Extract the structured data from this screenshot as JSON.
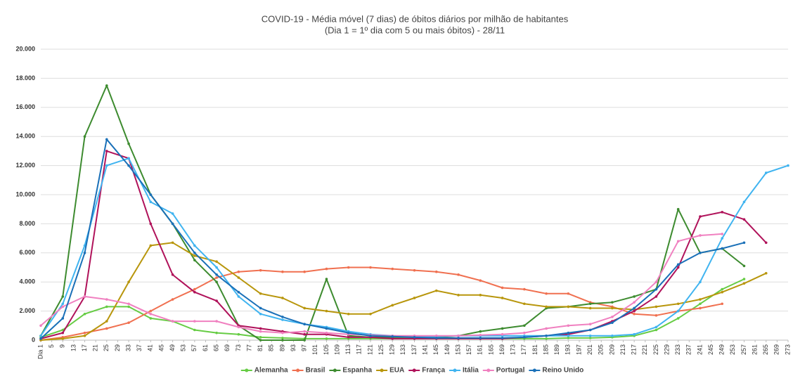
{
  "chart_data": {
    "type": "line",
    "title": "COVID-19 - Média móvel (7 dias) de óbitos diários por milhão de habitantes",
    "subtitle": "(Dia 1 = 1º dia com 5 ou mais óbitos) - 28/11",
    "x": [
      1,
      9,
      17,
      25,
      33,
      41,
      49,
      57,
      65,
      73,
      81,
      89,
      97,
      105,
      113,
      121,
      129,
      137,
      145,
      153,
      161,
      169,
      177,
      185,
      193,
      201,
      209,
      217,
      225,
      233,
      241,
      249,
      257,
      265,
      273
    ],
    "xlim": [
      1,
      273
    ],
    "xticks": [
      {
        "value": 1,
        "label": "Dia 1"
      },
      5,
      9,
      13,
      17,
      21,
      25,
      29,
      33,
      37,
      41,
      45,
      49,
      53,
      57,
      61,
      65,
      69,
      73,
      77,
      81,
      85,
      89,
      93,
      97,
      101,
      105,
      109,
      113,
      117,
      121,
      125,
      129,
      133,
      137,
      141,
      145,
      149,
      153,
      157,
      161,
      165,
      169,
      173,
      177,
      181,
      185,
      189,
      193,
      197,
      201,
      205,
      209,
      213,
      217,
      221,
      225,
      229,
      233,
      237,
      241,
      245,
      249,
      253,
      257,
      261,
      265,
      269,
      273
    ],
    "ylim": [
      0,
      20000
    ],
    "yticks": [
      0,
      {
        "value": 2000,
        "label": "2.000"
      },
      {
        "value": 4000,
        "label": "4.000"
      },
      {
        "value": 6000,
        "label": "6.000"
      },
      {
        "value": 8000,
        "label": "8.000"
      },
      {
        "value": 10000,
        "label": "10.000"
      },
      {
        "value": 12000,
        "label": "12.000"
      },
      {
        "value": 14000,
        "label": "14.000"
      },
      {
        "value": 16000,
        "label": "16.000"
      },
      {
        "value": 18000,
        "label": "18.000"
      },
      {
        "value": 20000,
        "label": "20.000"
      }
    ],
    "grid": true,
    "legend": "bottom",
    "series": [
      {
        "name": "Alemanha",
        "color": "#66cc44",
        "values": [
          200,
          700,
          1800,
          2300,
          2300,
          1500,
          1300,
          700,
          500,
          400,
          200,
          150,
          100,
          100,
          100,
          100,
          100,
          100,
          100,
          100,
          100,
          100,
          100,
          100,
          150,
          150,
          200,
          300,
          700,
          1500,
          2500,
          3500,
          4200,
          null,
          null
        ]
      },
      {
        "name": "Brasil",
        "color": "#f07050",
        "values": [
          0,
          200,
          500,
          800,
          1200,
          2000,
          2800,
          3500,
          4300,
          4700,
          4800,
          4700,
          4700,
          4900,
          5000,
          5000,
          4900,
          4800,
          4700,
          4500,
          4100,
          3600,
          3500,
          3200,
          3200,
          2600,
          2300,
          1800,
          1700,
          2000,
          2200,
          2500,
          null,
          null,
          null
        ]
      },
      {
        "name": "Espanha",
        "color": "#3d8b2f",
        "values": [
          300,
          3000,
          14000,
          17500,
          13500,
          10000,
          8000,
          5500,
          4000,
          1000,
          0,
          0,
          0,
          4200,
          300,
          200,
          200,
          200,
          200,
          300,
          600,
          800,
          1000,
          2200,
          2300,
          2500,
          2600,
          3000,
          3500,
          9000,
          6000,
          6300,
          5100,
          null,
          null
        ]
      },
      {
        "name": "EUA",
        "color": "#b8960c",
        "values": [
          0,
          100,
          300,
          1300,
          4000,
          6500,
          6700,
          5800,
          5400,
          4300,
          3200,
          2900,
          2200,
          2000,
          1800,
          1800,
          2400,
          2900,
          3400,
          3100,
          3100,
          2900,
          2500,
          2300,
          2300,
          2200,
          2200,
          2100,
          2300,
          2500,
          2800,
          3300,
          3900,
          4600,
          null
        ]
      },
      {
        "name": "França",
        "color": "#b0125a",
        "values": [
          100,
          500,
          3000,
          13000,
          12500,
          8000,
          4500,
          3300,
          2700,
          1000,
          800,
          600,
          400,
          400,
          200,
          200,
          100,
          100,
          100,
          100,
          100,
          100,
          200,
          300,
          400,
          700,
          1300,
          2000,
          3000,
          5000,
          8500,
          8800,
          8300,
          6700,
          null
        ]
      },
      {
        "name": "Itália",
        "color": "#40b4f0",
        "values": [
          300,
          2500,
          6500,
          12000,
          12500,
          9500,
          8700,
          6500,
          5000,
          3000,
          1800,
          1400,
          1100,
          900,
          600,
          400,
          300,
          250,
          250,
          300,
          300,
          300,
          300,
          300,
          300,
          300,
          300,
          400,
          900,
          2000,
          4000,
          7000,
          9500,
          11500,
          12000
        ]
      },
      {
        "name": "Portugal",
        "color": "#f080c0",
        "values": [
          1000,
          2300,
          3000,
          2800,
          2500,
          1800,
          1300,
          1300,
          1300,
          900,
          600,
          500,
          600,
          500,
          400,
          350,
          300,
          300,
          300,
          300,
          350,
          400,
          500,
          800,
          1000,
          1100,
          1600,
          2600,
          4000,
          6800,
          7200,
          7300,
          null,
          null,
          null
        ]
      },
      {
        "name": "Reino Unido",
        "color": "#1a70b8",
        "values": [
          100,
          1500,
          6000,
          13800,
          12000,
          10000,
          8000,
          6000,
          4500,
          3300,
          2200,
          1600,
          1100,
          800,
          500,
          300,
          250,
          200,
          150,
          150,
          150,
          150,
          200,
          300,
          500,
          700,
          1200,
          2200,
          3500,
          5200,
          6000,
          6300,
          6700,
          null,
          null
        ]
      }
    ]
  }
}
